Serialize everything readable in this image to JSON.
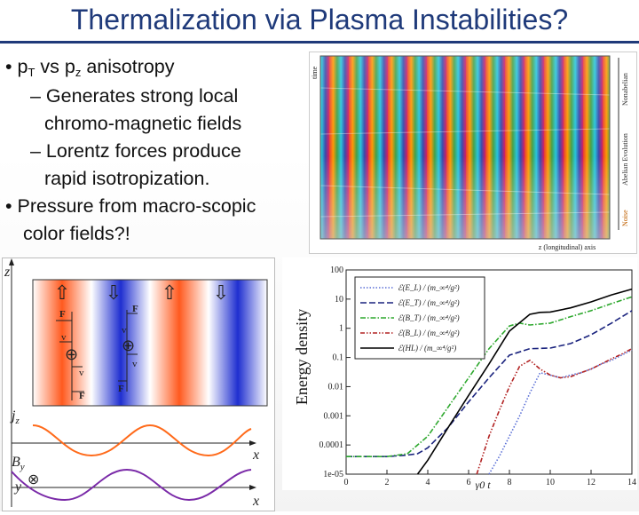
{
  "slide": {
    "title": "Thermalization via Plasma Instabilities?",
    "bullets": {
      "b1_pre": "p",
      "b1_sub1": "T",
      "b1_mid": " vs p",
      "b1_sub2": "z",
      "b1_post": " anisotropy",
      "b2_line1": "– Generates strong local",
      "b2_line2": "chromo-magnetic fields",
      "b3_line1": "– Lorentz forces produce",
      "b3_line2": "rapid isotropization.",
      "b4_line1": "Pressure from macro-scopic",
      "b4_line2": "color fields?!"
    },
    "bullet_char": "•"
  },
  "simulation": {
    "time_label": "time",
    "z_label": "z (longitudinal) axis",
    "phase_labels": [
      "Nonabelian",
      "Abelian Evolution",
      "Noise"
    ]
  },
  "diagram": {
    "z_label": "z",
    "jz_label": "j",
    "jz_sub": "z",
    "by_label": "B",
    "by_sub": "y",
    "x_label": "x",
    "y_label": "y",
    "F_label": "F",
    "v_label": "v",
    "plus_symbol": "⊕",
    "otimes_symbol": "⊗",
    "arrows": [
      "⇧",
      "⇩",
      "⇧",
      "⇩"
    ]
  },
  "chart_data": {
    "type": "line",
    "title": "",
    "ylabel": "Energy density",
    "xlabel": "γ0 t",
    "xlim": [
      0,
      14
    ],
    "ylim": [
      1e-05,
      100
    ],
    "yscale": "log",
    "x_ticks": [
      "0",
      "2",
      "4",
      "6",
      "8",
      "10",
      "12",
      "14"
    ],
    "y_ticks": [
      "100",
      "10",
      "1",
      "0.1",
      "0.01",
      "0.001",
      "0.0001",
      "1e-05"
    ],
    "series": [
      {
        "name": "ℰ(E_L) / (m_∞⁴/g²)",
        "color": "#5a6fd6",
        "style": "dotted",
        "x": [
          7.0,
          7.5,
          8.0,
          8.5,
          9.0,
          9.5,
          10,
          10.5,
          11,
          11.5,
          12,
          12.5,
          13,
          13.5,
          14
        ],
        "y": [
          1e-05,
          4e-05,
          0.0002,
          0.001,
          0.006,
          0.03,
          0.025,
          0.02,
          0.025,
          0.03,
          0.04,
          0.06,
          0.08,
          0.12,
          0.18
        ]
      },
      {
        "name": "ℰ(E_T) / (m_∞⁴/g²)",
        "color": "#1a237e",
        "style": "dashed",
        "x": [
          0,
          1,
          2,
          3,
          3.5,
          4,
          5,
          6,
          7,
          8,
          9,
          10,
          11,
          12,
          13,
          14
        ],
        "y": [
          4e-05,
          4e-05,
          4e-05,
          4.5e-05,
          5e-05,
          8e-05,
          0.0004,
          0.003,
          0.02,
          0.12,
          0.2,
          0.21,
          0.3,
          0.6,
          1.5,
          4
        ]
      },
      {
        "name": "ℰ(B_T) / (m_∞⁴/g²)",
        "color": "#2ea82e",
        "style": "dashdot",
        "x": [
          0,
          1,
          2,
          3,
          4,
          5,
          6,
          7,
          8,
          8.5,
          9,
          10,
          11,
          12,
          13,
          14
        ],
        "y": [
          4e-05,
          4e-05,
          4e-05,
          5e-05,
          0.0002,
          0.002,
          0.02,
          0.2,
          1.2,
          1.5,
          1.3,
          1.5,
          2.5,
          4,
          7,
          12
        ]
      },
      {
        "name": "ℰ(B_L) / (m_∞⁴/g²)",
        "color": "#b22222",
        "style": "dashdotdot",
        "x": [
          6.4,
          7,
          7.5,
          8,
          8.5,
          9,
          9.5,
          10,
          10.5,
          11,
          11.5,
          12,
          12.5,
          13,
          13.5,
          14
        ],
        "y": [
          1e-05,
          0.0002,
          0.0015,
          0.01,
          0.05,
          0.08,
          0.04,
          0.025,
          0.02,
          0.022,
          0.03,
          0.04,
          0.06,
          0.09,
          0.13,
          0.2
        ]
      },
      {
        "name": "ℰ(HL) / (m_∞⁴/g²)",
        "color": "#000000",
        "style": "solid",
        "x": [
          3.5,
          4,
          5,
          6,
          7,
          8,
          9,
          9.5,
          10,
          11,
          12,
          13,
          14
        ],
        "y": [
          1e-05,
          3e-05,
          0.0004,
          0.005,
          0.06,
          0.8,
          3,
          3.5,
          3.6,
          5,
          8,
          14,
          22
        ]
      }
    ]
  }
}
